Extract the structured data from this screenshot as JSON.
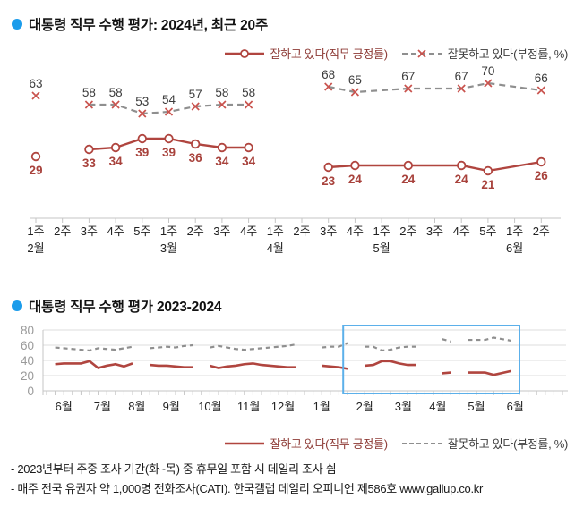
{
  "top": {
    "title": "대통령 직무 수행 평가: 2024년, 최근 20주"
  },
  "bottom": {
    "title": "대통령 직무 수행 평가 2023-2024"
  },
  "legend": {
    "positive": "잘하고 있다(직무 긍정률)",
    "negative": "잘못하고 있다(부정률, %)"
  },
  "footnotes": [
    "- 2023년부터 주중 조사 기간(화~목) 중 휴무일 포함 시 데일리 조사 쉼",
    "- 매주 전국 유권자 약 1,000명 전화조사(CATI). 한국갤럽 데일리 오피니언 제586호 www.gallup.co.kr"
  ],
  "colors": {
    "positive_line": "#b0453f",
    "positive_label": "#a8423c",
    "negative_line": "#8f8f8f",
    "negative_marker": "#c9534e",
    "negative_label": "#3c3c3c",
    "axis": "#c5c5c5",
    "grid": "#dcdcdc",
    "ytick_label": "#9a9a9a",
    "month_label": "#222222",
    "bullet": "#1b9ceb",
    "highlight_box": "#5cb0ea"
  },
  "chart_data": [
    {
      "type": "line",
      "title": "대통령 직무 수행 평가: 2024년, 최근 20주",
      "week_labels": [
        "1주",
        "2주",
        "3주",
        "4주",
        "5주",
        "1주",
        "2주",
        "3주",
        "4주",
        "1주",
        "2주",
        "3주",
        "4주",
        "1주",
        "2주",
        "3주",
        "4주",
        "5주",
        "1주",
        "2주"
      ],
      "months": [
        {
          "label": "2월",
          "start": 0
        },
        {
          "label": "3월",
          "start": 5
        },
        {
          "label": "4월",
          "start": 9
        },
        {
          "label": "5월",
          "start": 13
        },
        {
          "label": "6월",
          "start": 18
        }
      ],
      "series": [
        {
          "name": "잘하고 있다(직무 긍정률)",
          "values": [
            29,
            null,
            33,
            34,
            39,
            39,
            36,
            34,
            34,
            null,
            null,
            23,
            24,
            null,
            24,
            null,
            24,
            21,
            null,
            26
          ]
        },
        {
          "name": "잘못하고 있다(부정률, %)",
          "values": [
            63,
            null,
            58,
            58,
            53,
            54,
            57,
            58,
            58,
            null,
            null,
            68,
            65,
            null,
            67,
            null,
            67,
            70,
            null,
            66
          ]
        }
      ],
      "segments": [
        [
          0
        ],
        [
          2,
          3,
          4,
          5,
          6,
          7,
          8
        ],
        [
          11,
          12,
          14,
          16,
          17,
          19
        ]
      ],
      "ylim": [
        15,
        80
      ],
      "grid": false,
      "legend_position": "top-right"
    },
    {
      "type": "line",
      "title": "대통령 직무 수행 평가 2023-2024",
      "months": [
        {
          "label": "6월",
          "center": 2
        },
        {
          "label": "7월",
          "center": 6.5
        },
        {
          "label": "8월",
          "center": 10.5
        },
        {
          "label": "9월",
          "center": 14.5
        },
        {
          "label": "10월",
          "center": 19
        },
        {
          "label": "11월",
          "center": 23.5
        },
        {
          "label": "12월",
          "center": 27.5
        },
        {
          "label": "1월",
          "center": 32
        },
        {
          "label": "2월",
          "center": 37
        },
        {
          "label": "3월",
          "center": 41.5
        },
        {
          "label": "4월",
          "center": 45.5
        },
        {
          "label": "5월",
          "center": 50
        },
        {
          "label": "6월",
          "center": 54.5
        }
      ],
      "yticks": [
        0,
        20,
        40,
        60,
        80
      ],
      "ylim": [
        0,
        80
      ],
      "grid": true,
      "legend_position": "bottom-right",
      "series": [
        {
          "name": "잘하고 있다(직무 긍정률)",
          "segments": [
            [
              [
                1,
                35
              ],
              [
                2,
                36
              ],
              [
                3,
                36
              ],
              [
                4,
                36
              ],
              [
                5,
                39
              ],
              [
                6,
                30
              ],
              [
                7,
                33
              ],
              [
                8,
                35
              ],
              [
                9,
                32
              ],
              [
                10,
                36
              ]
            ],
            [
              [
                12,
                34
              ],
              [
                13,
                33
              ],
              [
                14,
                33
              ],
              [
                15,
                32
              ],
              [
                16,
                31
              ],
              [
                17,
                31
              ]
            ],
            [
              [
                19,
                33
              ],
              [
                20,
                30
              ],
              [
                21,
                32
              ],
              [
                22,
                33
              ],
              [
                23,
                35
              ],
              [
                24,
                36
              ],
              [
                25,
                34
              ],
              [
                26,
                33
              ],
              [
                27,
                32
              ],
              [
                28,
                31
              ],
              [
                29,
                31
              ]
            ],
            [
              [
                32,
                33
              ],
              [
                33,
                32
              ],
              [
                34,
                31
              ],
              [
                35,
                29
              ]
            ],
            [
              [
                37,
                33
              ],
              [
                38,
                34
              ],
              [
                39,
                39
              ],
              [
                40,
                39
              ],
              [
                41,
                36
              ],
              [
                42,
                34
              ],
              [
                43,
                34
              ]
            ],
            [
              [
                46,
                23
              ],
              [
                47,
                24
              ]
            ],
            [
              [
                49,
                24
              ],
              [
                51,
                24
              ],
              [
                52,
                21
              ],
              [
                54,
                26
              ]
            ]
          ]
        },
        {
          "name": "잘못하고 있다(부정률, %)",
          "segments": [
            [
              [
                1,
                57
              ],
              [
                2,
                56
              ],
              [
                3,
                55
              ],
              [
                4,
                54
              ],
              [
                5,
                53
              ],
              [
                6,
                56
              ],
              [
                7,
                55
              ],
              [
                8,
                54
              ],
              [
                9,
                56
              ],
              [
                10,
                58
              ]
            ],
            [
              [
                12,
                56
              ],
              [
                13,
                57
              ],
              [
                14,
                58
              ],
              [
                15,
                57
              ],
              [
                16,
                59
              ],
              [
                17,
                60
              ]
            ],
            [
              [
                19,
                57
              ],
              [
                20,
                59
              ],
              [
                21,
                57
              ],
              [
                22,
                55
              ],
              [
                23,
                54
              ],
              [
                24,
                55
              ],
              [
                25,
                56
              ],
              [
                26,
                57
              ],
              [
                27,
                58
              ],
              [
                28,
                59
              ],
              [
                29,
                61
              ]
            ],
            [
              [
                32,
                57
              ],
              [
                33,
                58
              ],
              [
                34,
                58
              ],
              [
                35,
                63
              ]
            ],
            [
              [
                37,
                58
              ],
              [
                38,
                58
              ],
              [
                39,
                53
              ],
              [
                40,
                54
              ],
              [
                41,
                57
              ],
              [
                42,
                58
              ],
              [
                43,
                58
              ]
            ],
            [
              [
                46,
                68
              ],
              [
                47,
                65
              ]
            ],
            [
              [
                49,
                67
              ],
              [
                51,
                67
              ],
              [
                52,
                70
              ],
              [
                54,
                66
              ]
            ]
          ]
        }
      ],
      "highlight_box": {
        "from_week": 34.5,
        "to_week": 55,
        "meaning": "2024년 구간 강조"
      }
    }
  ]
}
